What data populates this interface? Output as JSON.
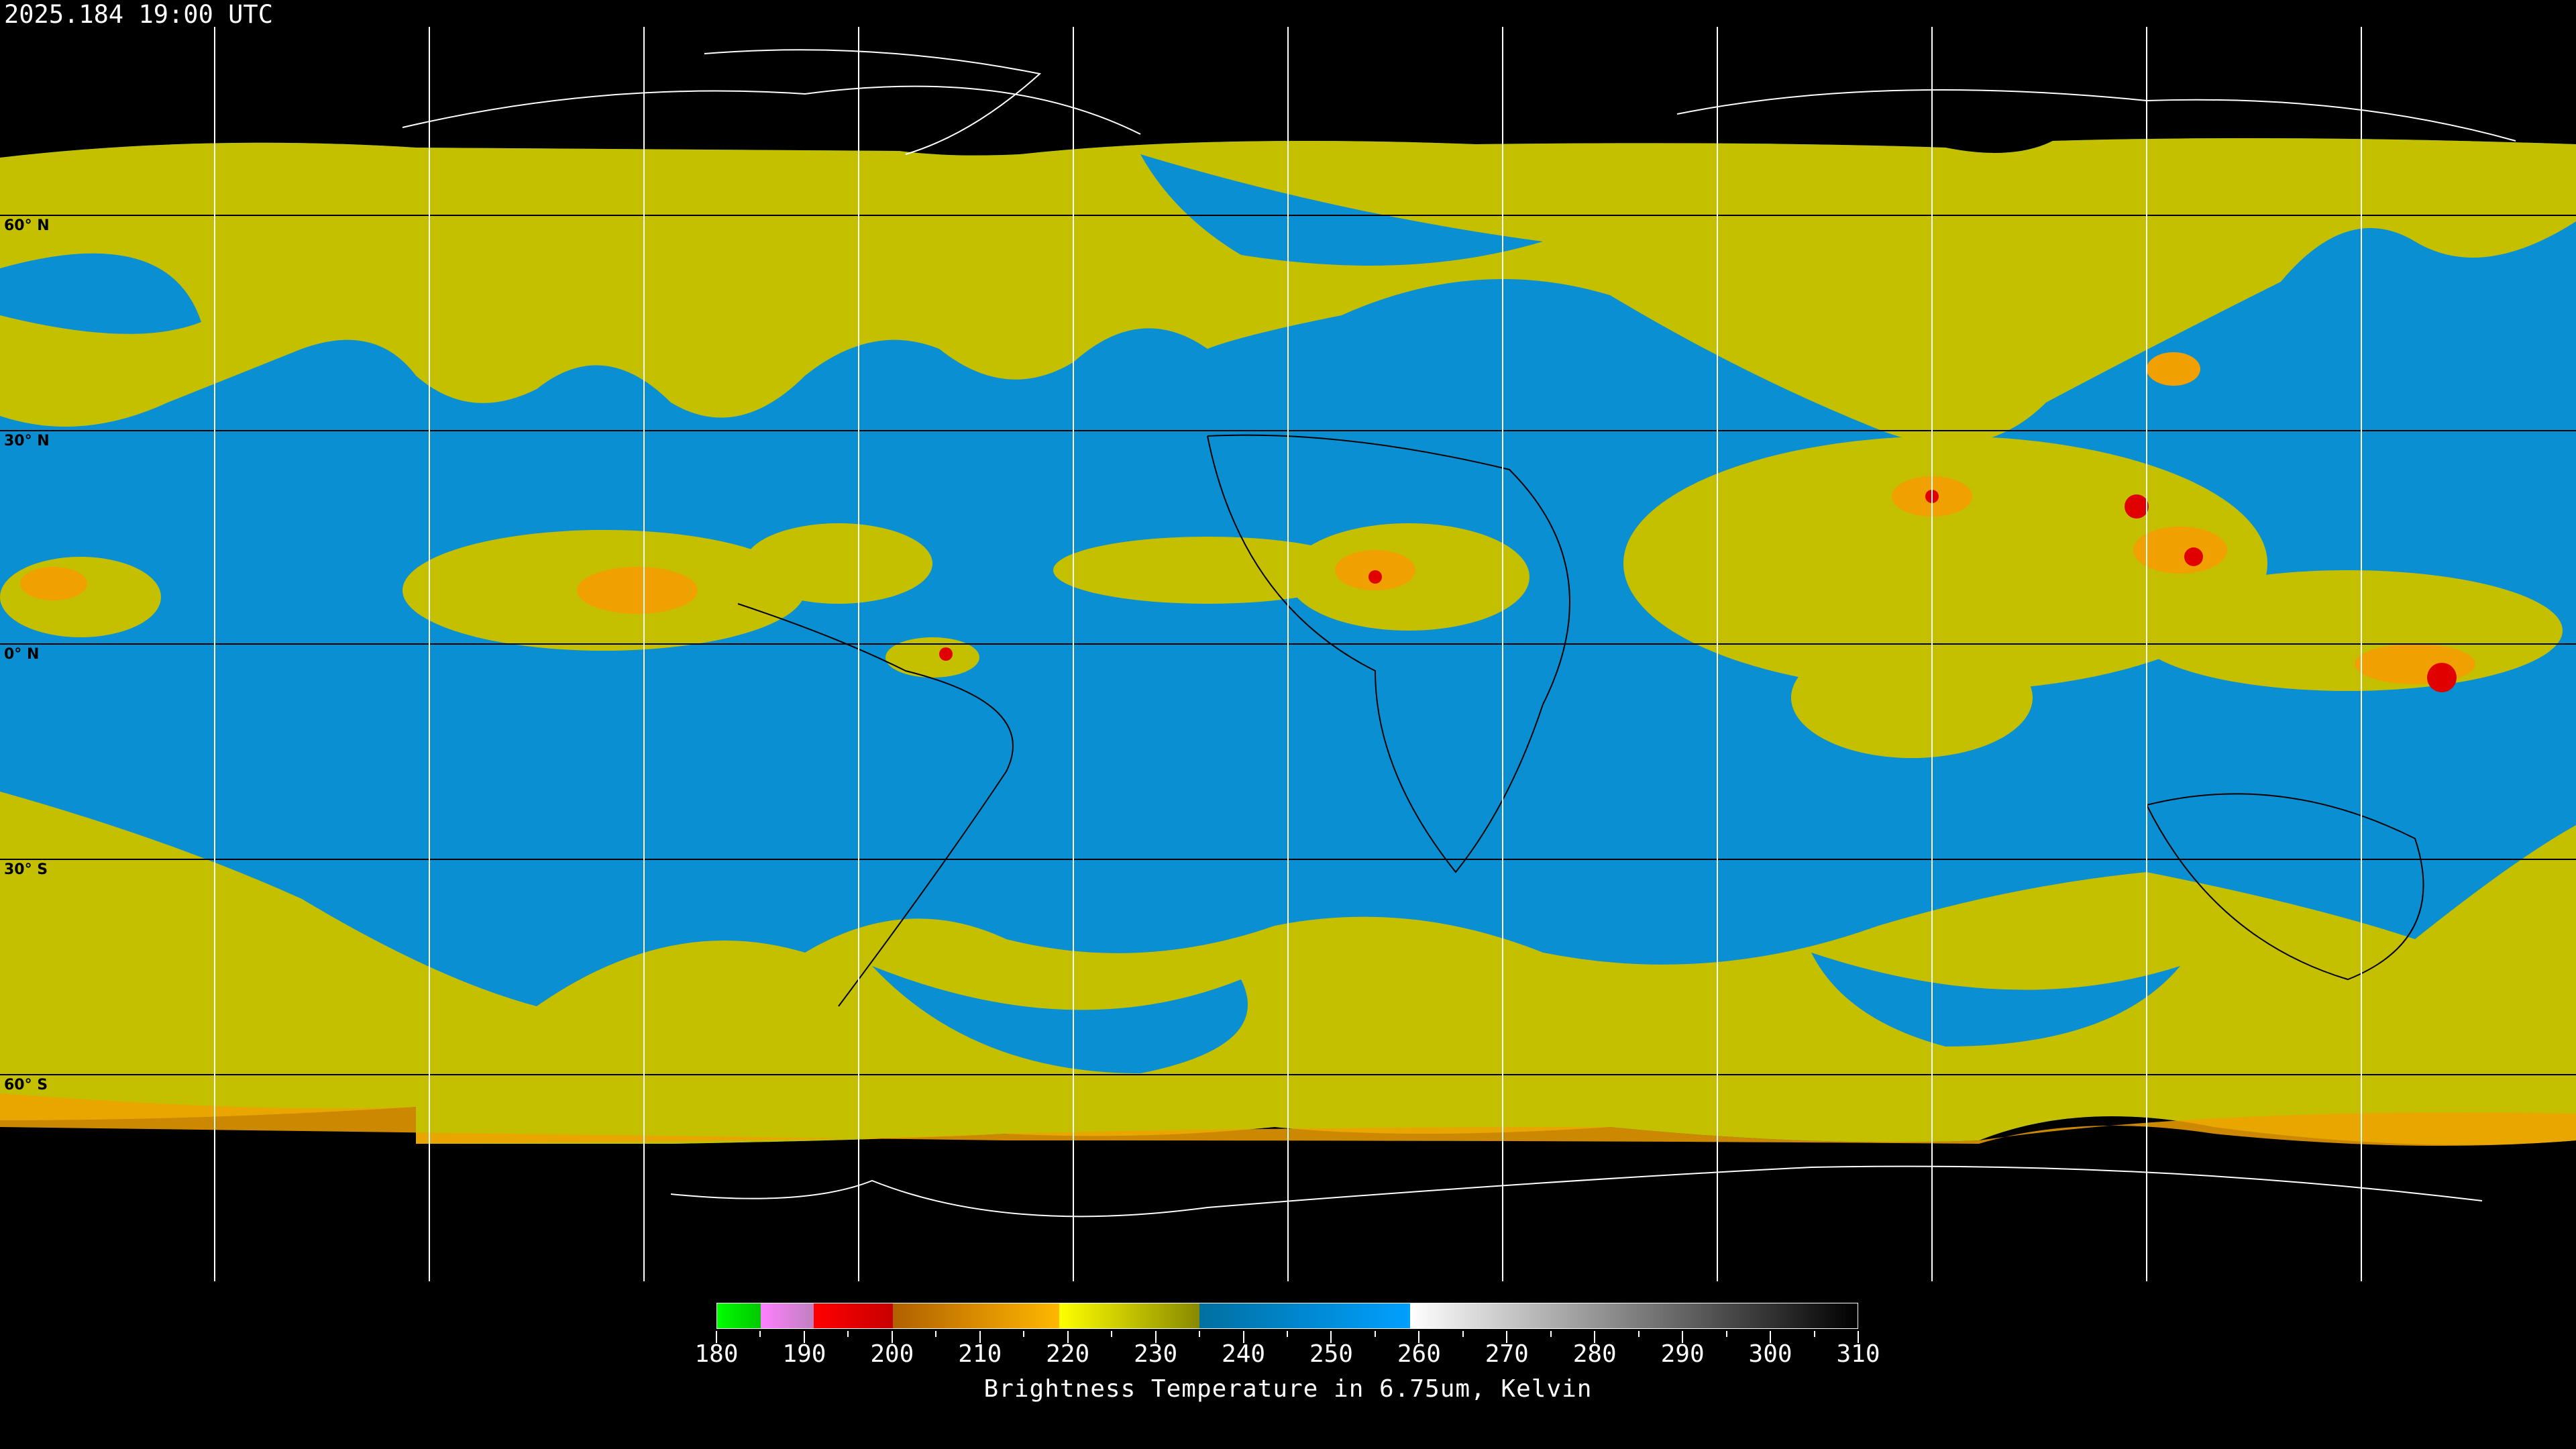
{
  "header": {
    "timestamp": "2025.184 19:00 UTC"
  },
  "map": {
    "lat_labels": [
      "60° N",
      "30° N",
      "0° N",
      "30° S",
      "60° S"
    ],
    "colors": {
      "background": "#000000",
      "low_moisture_blue": "#0a8fd2",
      "high_moisture_yellow": "#c4c000",
      "cold_cloud_orange": "#f0a000",
      "deep_convection_red": "#e00000",
      "grid": "#000000",
      "coastline": "#ffffff"
    }
  },
  "colorbar": {
    "label": "Brightness Temperature in 6.75um, Kelvin",
    "min": 180,
    "max": 310,
    "ticks": [
      "180",
      "190",
      "200",
      "210",
      "220",
      "230",
      "240",
      "250",
      "260",
      "270",
      "280",
      "290",
      "300",
      "310"
    ],
    "segments": [
      {
        "from": 180,
        "to": 185,
        "start": "#00ff00",
        "end": "#00c800"
      },
      {
        "from": 185,
        "to": 191,
        "start": "#ff80ff",
        "end": "#c080c0"
      },
      {
        "from": 191,
        "to": 200,
        "start": "#ff0000",
        "end": "#c80000"
      },
      {
        "from": 200,
        "to": 219,
        "start": "#b06000",
        "end": "#ffb800"
      },
      {
        "from": 219,
        "to": 235,
        "start": "#ffff00",
        "end": "#888800"
      },
      {
        "from": 235,
        "to": 259,
        "start": "#0070a0",
        "end": "#00a0ff"
      },
      {
        "from": 259,
        "to": 310,
        "start": "#ffffff",
        "end": "#000000"
      }
    ]
  }
}
